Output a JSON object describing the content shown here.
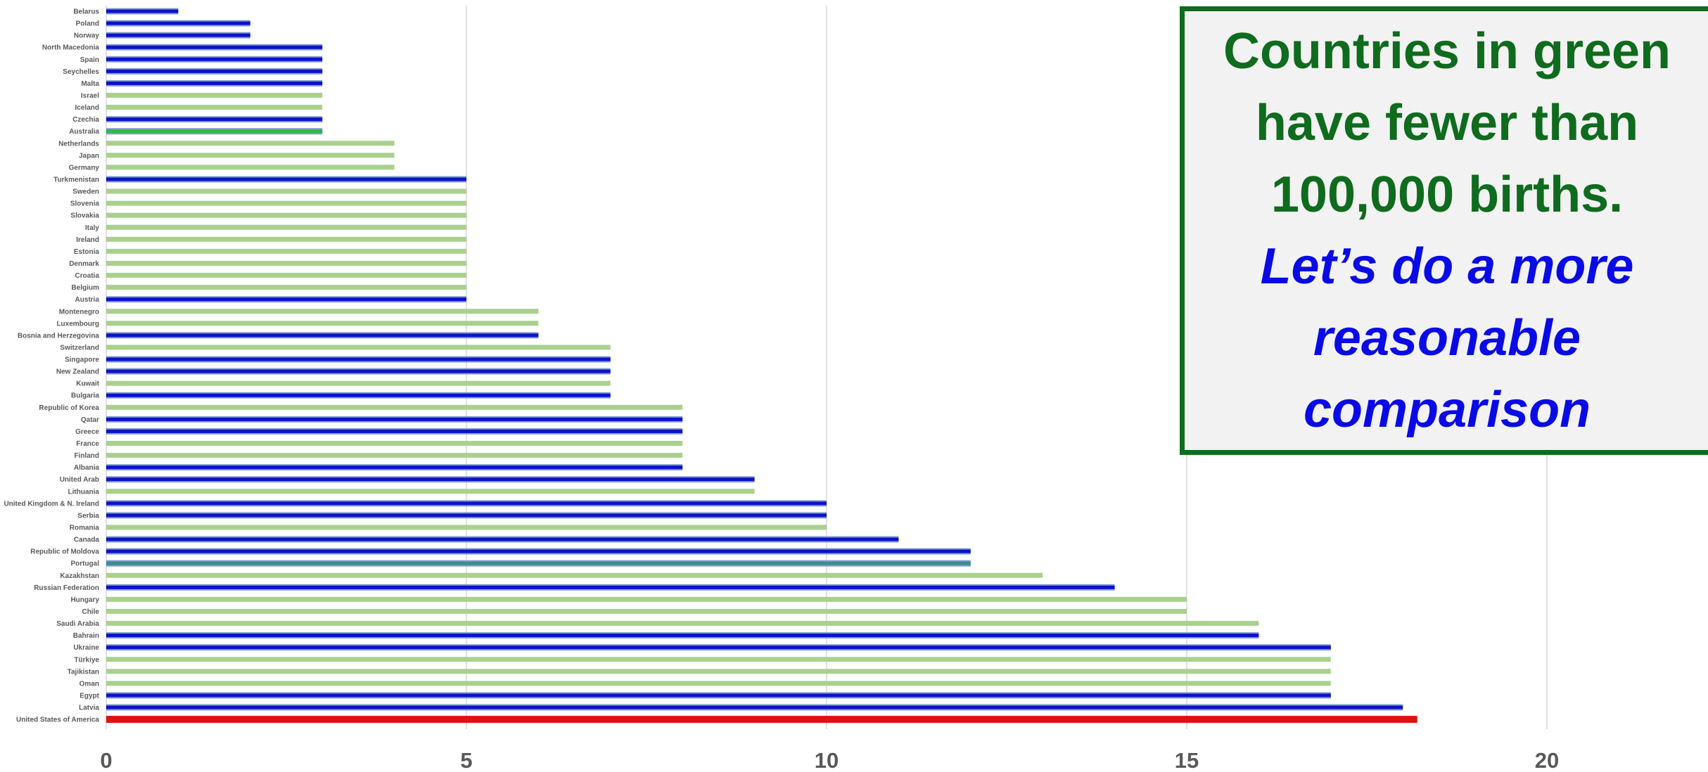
{
  "chart_data": {
    "type": "bar",
    "orientation": "horizontal",
    "xlim": [
      0,
      22
    ],
    "ticks": [
      "0",
      "5",
      "10",
      "15",
      "20"
    ],
    "grid": true,
    "categories": [
      "Belarus",
      "Poland",
      "Norway",
      "North Macedonia",
      "Spain",
      "Seychelles",
      "Malta",
      "Israel",
      "Iceland",
      "Czechia",
      "Australia",
      "Netherlands",
      "Japan",
      "Germany",
      "Turkmenistan",
      "Sweden",
      "Slovenia",
      "Slovakia",
      "Italy",
      "Ireland",
      "Estonia",
      "Denmark",
      "Croatia",
      "Belgium",
      "Austria",
      "Montenegro",
      "Luxembourg",
      "Bosnia and Herzegovina",
      "Switzerland",
      "Singapore",
      "New Zealand",
      "Kuwait",
      "Bulgaria",
      "Republic of Korea",
      "Qatar",
      "Greece",
      "France",
      "Finland",
      "Albania",
      "United Arab",
      "Lithuania",
      "United Kingdom  & N. Ireland",
      "Serbia",
      "Romania",
      "Canada",
      "Republic of Moldova",
      "Portugal",
      "Kazakhstan",
      "Russian Federation",
      "Hungary",
      "Chile",
      "Saudi Arabia",
      "Bahrain",
      "Ukraine",
      "Türkiye",
      "Tajikistan",
      "Oman",
      "Egypt",
      "Latvia",
      "United States of America"
    ],
    "values": [
      1,
      2,
      2,
      3,
      3,
      3,
      3,
      3,
      3,
      3,
      3,
      4,
      4,
      4,
      5,
      5,
      5,
      5,
      5,
      5,
      5,
      5,
      5,
      5,
      5,
      6,
      6,
      6,
      7,
      7,
      7,
      7,
      7,
      8,
      8,
      8,
      8,
      8,
      8,
      9,
      9,
      10,
      10,
      10,
      11,
      12,
      12,
      13,
      14,
      15,
      15,
      16,
      16,
      17,
      17,
      17,
      17,
      17,
      18,
      18.2
    ],
    "groups": [
      "blue",
      "blue",
      "blue",
      "blue",
      "blue",
      "blue",
      "blue",
      "green",
      "green",
      "blue",
      "green-outline",
      "green",
      "green",
      "green",
      "blue",
      "green",
      "green",
      "green",
      "green",
      "green",
      "green",
      "green",
      "green",
      "green",
      "blue",
      "green",
      "green",
      "blue",
      "green",
      "blue",
      "blue",
      "green",
      "blue",
      "green",
      "blue",
      "blue",
      "green",
      "green",
      "blue",
      "blue",
      "green",
      "blue",
      "blue",
      "green",
      "blue",
      "blue",
      "teal",
      "green",
      "blue",
      "green",
      "green",
      "green",
      "blue",
      "blue",
      "green",
      "green",
      "green",
      "blue",
      "blue",
      "red"
    ],
    "colors": {
      "green": "#a9d18e",
      "blue": "#1010c8",
      "blue_outline": "#7f9fcf",
      "green-outline": "#2eb84b",
      "teal": "#3d8c8c",
      "red": "#e01010",
      "grid": "#d9d9d9"
    }
  },
  "callout": {
    "line1": "Countries in green have fewer than 100,000 births.",
    "line2": "Let’s do a more reasonable comparison"
  }
}
